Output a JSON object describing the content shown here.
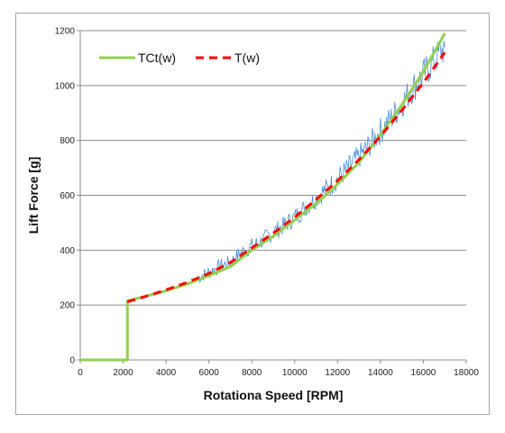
{
  "chart_data": {
    "type": "line",
    "title": "",
    "xlabel": "Rotationa Speed [RPM]",
    "ylabel": "Lift Force [g]",
    "xlim": [
      0,
      18000
    ],
    "ylim": [
      0,
      1200
    ],
    "x_ticks": [
      "0",
      "2000",
      "4000",
      "6000",
      "8000",
      "10000",
      "12000",
      "14000",
      "16000",
      "18000"
    ],
    "y_ticks": [
      "0",
      "200",
      "400",
      "600",
      "800",
      "1000",
      "1200"
    ],
    "grid": "horizontal",
    "legend_position": "top-left",
    "series": [
      {
        "name": "TCt(w)",
        "style": "solid",
        "color": "#92d050",
        "x": [
          0,
          2200,
          2200,
          3000,
          4000,
          5000,
          6000,
          7000,
          8000,
          9000,
          10000,
          11000,
          12000,
          13000,
          14000,
          15000,
          16000,
          17000
        ],
        "y": [
          0,
          0,
          215,
          231,
          252,
          277,
          307,
          340,
          400,
          450,
          510,
          570,
          640,
          720,
          820,
          930,
          1050,
          1190
        ]
      },
      {
        "name": "T(w)",
        "style": "dashed",
        "color": "#ff0000",
        "x": [
          2200,
          3000,
          4000,
          5000,
          6000,
          7000,
          8000,
          9000,
          10000,
          11000,
          12000,
          13000,
          14000,
          15000,
          16000,
          17000
        ],
        "y": [
          212,
          230,
          255,
          283,
          315,
          355,
          408,
          462,
          520,
          585,
          653,
          730,
          815,
          910,
          1010,
          1120
        ]
      },
      {
        "name": "",
        "style": "noisy",
        "color": "#4a8ed1",
        "x": [
          5500,
          6000,
          6500,
          7000,
          7500,
          8000,
          8500,
          9000,
          9500,
          10000,
          10500,
          11000,
          11500,
          12000,
          12500,
          13000,
          13500,
          14000,
          14500,
          15000,
          15500,
          16000,
          16500,
          17000
        ],
        "y": [
          300,
          320,
          340,
          355,
          390,
          415,
          435,
          465,
          490,
          520,
          555,
          590,
          625,
          660,
          700,
          740,
          785,
          835,
          880,
          935,
          990,
          1040,
          1090,
          1140
        ]
      }
    ]
  }
}
